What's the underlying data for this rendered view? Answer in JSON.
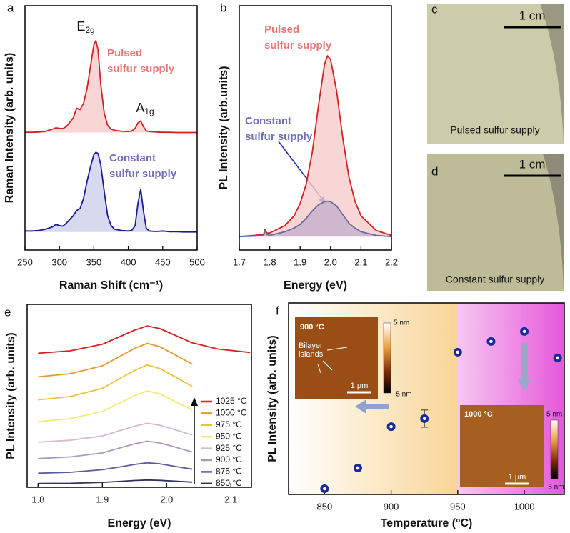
{
  "chart_data": [
    {
      "type": "line",
      "label": "a",
      "xlabel": "Raman Shift (cm⁻¹)",
      "ylabel": "Raman Intensity (arb. units)",
      "xlim": [
        250,
        500
      ],
      "xticks": [
        250,
        300,
        350,
        400,
        450,
        500
      ],
      "ylim": [
        0,
        10
      ],
      "x": [
        250,
        260,
        270,
        280,
        290,
        295,
        300,
        305,
        310,
        320,
        325,
        330,
        335,
        340,
        345,
        350,
        353,
        356,
        360,
        365,
        370,
        375,
        380,
        390,
        400,
        405,
        410,
        414,
        418,
        422,
        426,
        430,
        440,
        450,
        460,
        470,
        480,
        490,
        500
      ],
      "series": [
        {
          "name": "Pulsed sulfur supply",
          "color": "#d42020",
          "fill": "#f8cccc",
          "values": [
            4.82,
            4.82,
            4.83,
            4.86,
            4.95,
            5.0,
            4.98,
            4.97,
            5.05,
            5.4,
            5.8,
            5.75,
            6.0,
            6.6,
            7.5,
            8.4,
            8.57,
            8.2,
            6.8,
            5.6,
            5.1,
            4.95,
            4.9,
            4.86,
            4.85,
            4.87,
            4.98,
            5.2,
            5.28,
            5.05,
            4.88,
            4.85,
            4.83,
            4.82,
            4.82,
            4.81,
            4.81,
            4.81,
            4.81
          ]
        },
        {
          "name": "Constant sulfur supply",
          "color": "#1a1a9a",
          "fill": "#cdd0ea",
          "values": [
            0.78,
            0.78,
            0.8,
            0.85,
            0.95,
            1.05,
            1.0,
            0.98,
            1.1,
            1.4,
            1.62,
            1.7,
            2.1,
            2.8,
            3.4,
            3.9,
            4.0,
            3.95,
            3.5,
            2.4,
            1.4,
            1.0,
            0.85,
            0.8,
            0.78,
            0.8,
            1.0,
            1.9,
            2.49,
            1.6,
            0.9,
            0.78,
            0.76,
            0.78,
            0.75,
            0.75,
            0.74,
            0.74,
            0.74
          ]
        }
      ],
      "annotations": [
        {
          "text": "E",
          "sub": "2g",
          "color": "#111111"
        },
        {
          "text": "A",
          "sub": "1g",
          "color": "#111111"
        },
        {
          "lines": [
            "Pulsed",
            "sulfur supply"
          ],
          "color": "#e87878"
        },
        {
          "lines": [
            "Constant",
            "sulfur supply"
          ],
          "color": "#6f6fb4"
        }
      ]
    },
    {
      "type": "line",
      "label": "b",
      "xlabel": "Energy (eV)",
      "ylabel": "PL Intensity (arb.units)",
      "xlim": [
        1.7,
        2.2
      ],
      "xticks": [
        1.7,
        1.8,
        1.9,
        {
          "value": 2,
          "label": "2.0"
        },
        2.1,
        2.2
      ],
      "ylim": [
        0,
        10
      ],
      "x": [
        1.7,
        1.75,
        1.78,
        1.785,
        1.79,
        1.8,
        1.85,
        1.88,
        1.9,
        1.92,
        1.94,
        1.96,
        1.98,
        1.99,
        2.0,
        2.02,
        2.04,
        2.06,
        2.08,
        2.1,
        2.15,
        2.2
      ],
      "series": [
        {
          "name": "Pulsed sulfur supply",
          "color": "#d42020",
          "fill": "#f8cccc",
          "values": [
            0.55,
            0.6,
            0.65,
            0.85,
            0.7,
            0.7,
            1.0,
            1.4,
            1.9,
            2.7,
            4.0,
            5.9,
            7.6,
            7.95,
            7.8,
            6.5,
            4.6,
            3.0,
            2.0,
            1.4,
            0.8,
            0.6
          ]
        },
        {
          "name": "Constant sulfur supply",
          "color": "#6a6a9a",
          "fill": "#c4b0cc",
          "values": [
            0.55,
            0.57,
            0.6,
            0.8,
            0.65,
            0.6,
            0.75,
            0.9,
            1.05,
            1.3,
            1.6,
            1.85,
            1.98,
            2.0,
            1.98,
            1.8,
            1.45,
            1.1,
            0.9,
            0.75,
            0.6,
            0.55
          ]
        }
      ],
      "annotations": [
        {
          "lines": [
            "Pulsed",
            "sulfur supply"
          ],
          "color": "#e87878"
        },
        {
          "lines": [
            "Constant",
            "sulfur supply"
          ],
          "color": "#6f6fb4"
        }
      ]
    },
    {
      "type": "line",
      "label": "e",
      "xlabel": "Energy (eV)",
      "ylabel": "PL Intensity (arb. units)",
      "xlim": [
        1.783,
        2.132
      ],
      "xticks": [
        1.8,
        1.9,
        {
          "value": 2,
          "label": "2.0"
        },
        2.1
      ],
      "ylim": [
        0,
        10
      ],
      "x": [
        1.8,
        1.85,
        1.9,
        1.93,
        1.95,
        1.97,
        1.99,
        2.01,
        2.04,
        2.08,
        2.13
      ],
      "series": [
        {
          "name": "1025 °C",
          "color": "#d62020",
          "values": [
            7.33,
            7.46,
            7.82,
            8.28,
            8.59,
            8.82,
            8.67,
            8.36,
            7.9,
            7.56,
            7.37
          ]
        },
        {
          "name": "1000 °C",
          "color": "#e8982a",
          "values": [
            6.04,
            6.21,
            6.64,
            7.21,
            7.59,
            7.87,
            7.68,
            7.3,
            6.74,
            null,
            null
          ]
        },
        {
          "name": "975 °C",
          "color": "#f0c040",
          "values": [
            4.78,
            4.96,
            5.41,
            6.0,
            6.39,
            6.69,
            6.49,
            6.1,
            5.51,
            null,
            null
          ]
        },
        {
          "name": "950 °C",
          "color": "#eeea78",
          "values": [
            3.59,
            3.75,
            4.15,
            4.66,
            5.01,
            5.27,
            5.1,
            4.75,
            4.23,
            null,
            null
          ]
        },
        {
          "name": "925 °C",
          "color": "#d8b8cc",
          "values": [
            2.47,
            2.57,
            2.81,
            3.13,
            3.34,
            3.5,
            3.39,
            3.18,
            2.86,
            null,
            null
          ]
        },
        {
          "name": "900 °C",
          "color": "#a79ac0",
          "values": [
            1.57,
            1.66,
            1.88,
            2.18,
            2.37,
            2.52,
            2.42,
            2.23,
            1.93,
            null,
            null
          ]
        },
        {
          "name": "875 °C",
          "color": "#5e5aa0",
          "values": [
            0.77,
            0.82,
            0.96,
            1.13,
            1.25,
            1.34,
            1.28,
            1.16,
            0.99,
            null,
            null
          ]
        },
        {
          "name": "850 °C",
          "color": "#34335e",
          "values": [
            0.21,
            0.22,
            0.27,
            0.33,
            0.37,
            0.4,
            0.38,
            0.34,
            0.28,
            null,
            null
          ]
        }
      ]
    },
    {
      "type": "scatter",
      "label": "f",
      "xlabel": "Temperature (°C)",
      "ylabel": "PL Intensity (arb. units)",
      "xlim": [
        823,
        1030
      ],
      "xticks": [
        850,
        900,
        950,
        1000
      ],
      "ylim": [
        0,
        10
      ],
      "color": "#1a2a9a",
      "x": [
        850,
        875,
        900,
        925,
        950,
        975,
        1000,
        1025
      ],
      "values": [
        0.3,
        1.38,
        3.54,
        3.96,
        7.43,
        7.99,
        8.51,
        7.13
      ],
      "errors": [
        null,
        null,
        null,
        0.45,
        null,
        null,
        null,
        null
      ],
      "insets": [
        {
          "temperature": "900 °C",
          "max": "5 nm",
          "min": "-5 nm",
          "scale": "1 μm",
          "note": [
            "Bilayer",
            "islands"
          ]
        },
        {
          "temperature": "1000 °C",
          "max": "5 nm",
          "min": "-5 nm",
          "scale": "1 μm"
        }
      ]
    }
  ],
  "photos": [
    {
      "label": "c",
      "scale": "1 cm",
      "caption": "Pulsed sulfur supply"
    },
    {
      "label": "d",
      "scale": "1 cm",
      "caption": "Constant sulfur supply"
    }
  ]
}
